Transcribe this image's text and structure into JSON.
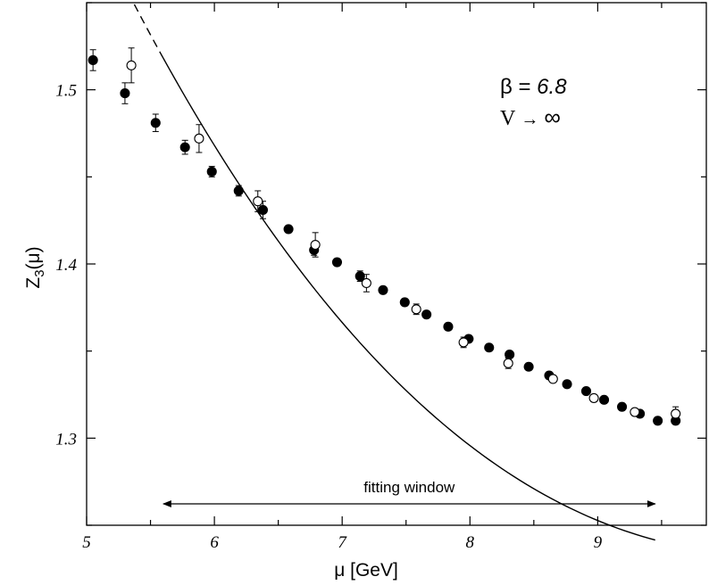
{
  "chart_data": {
    "type": "scatter",
    "xlabel": "μ [GeV]",
    "ylabel_main": "Z",
    "ylabel_sub": "3",
    "ylabel_tail": "(μ)",
    "xlim": [
      5.0,
      9.85
    ],
    "ylim": [
      1.25,
      1.55
    ],
    "x_ticks": [
      {
        "value": 5,
        "label": "5"
      },
      {
        "value": 6,
        "label": "6"
      },
      {
        "value": 7,
        "label": "7"
      },
      {
        "value": 8,
        "label": "8"
      },
      {
        "value": 9,
        "label": "9"
      }
    ],
    "y_ticks": [
      {
        "value": 1.3,
        "label": "1.3"
      },
      {
        "value": 1.4,
        "label": "1.4"
      },
      {
        "value": 1.5,
        "label": "1.5"
      }
    ],
    "x_minor_step": 0.5,
    "y_minor_step": 0.05,
    "annotation": {
      "beta_symbol": "β",
      "beta_eq": " = ",
      "beta_value": "6.8",
      "volume_symbol": "V",
      "arrow": "→",
      "infinity": "∞"
    },
    "fitting_window": {
      "label": "fitting window",
      "from": 5.6,
      "to": 9.45
    },
    "fit_curve": {
      "dashed_from": 5.0,
      "solid_from": 5.6,
      "to": 9.45,
      "coeffs": [
        2.91294,
        -0.383167,
        0.0270222,
        -0.000549398
      ]
    },
    "series": [
      {
        "marker": "filled",
        "points": [
          {
            "x": 5.05,
            "y": 1.517,
            "err": 0.006
          },
          {
            "x": 5.3,
            "y": 1.498,
            "err": 0.006
          },
          {
            "x": 5.54,
            "y": 1.481,
            "err": 0.005
          },
          {
            "x": 5.77,
            "y": 1.467,
            "err": 0.004
          },
          {
            "x": 5.98,
            "y": 1.453,
            "err": 0.003
          },
          {
            "x": 6.19,
            "y": 1.442,
            "err": 0.003
          },
          {
            "x": 6.38,
            "y": 1.431,
            "err": 0.005
          },
          {
            "x": 6.58,
            "y": 1.42,
            "err": 0.002
          },
          {
            "x": 6.78,
            "y": 1.408,
            "err": 0.003
          },
          {
            "x": 6.96,
            "y": 1.401,
            "err": 0.002
          },
          {
            "x": 7.14,
            "y": 1.393,
            "err": 0.003
          },
          {
            "x": 7.32,
            "y": 1.385,
            "err": 0.002
          },
          {
            "x": 7.49,
            "y": 1.378,
            "err": 0.002
          },
          {
            "x": 7.66,
            "y": 1.371,
            "err": 0.002
          },
          {
            "x": 7.83,
            "y": 1.364,
            "err": 0.002
          },
          {
            "x": 7.99,
            "y": 1.357,
            "err": 0.002
          },
          {
            "x": 8.15,
            "y": 1.352,
            "err": 0.002
          },
          {
            "x": 8.31,
            "y": 1.348,
            "err": 0.002
          },
          {
            "x": 8.46,
            "y": 1.341,
            "err": 0.002
          },
          {
            "x": 8.62,
            "y": 1.336,
            "err": 0.002
          },
          {
            "x": 8.76,
            "y": 1.331,
            "err": 0.002
          },
          {
            "x": 8.91,
            "y": 1.327,
            "err": 0.002
          },
          {
            "x": 9.05,
            "y": 1.322,
            "err": 0.002
          },
          {
            "x": 9.19,
            "y": 1.318,
            "err": 0.002
          },
          {
            "x": 9.33,
            "y": 1.314,
            "err": 0.002
          },
          {
            "x": 9.47,
            "y": 1.31,
            "err": 0.002
          },
          {
            "x": 9.61,
            "y": 1.31,
            "err": 0.002
          }
        ]
      },
      {
        "marker": "open",
        "points": [
          {
            "x": 5.35,
            "y": 1.514,
            "err": 0.01
          },
          {
            "x": 5.88,
            "y": 1.472,
            "err": 0.008
          },
          {
            "x": 6.34,
            "y": 1.436,
            "err": 0.006
          },
          {
            "x": 6.79,
            "y": 1.411,
            "err": 0.007
          },
          {
            "x": 7.19,
            "y": 1.389,
            "err": 0.005
          },
          {
            "x": 7.58,
            "y": 1.374,
            "err": 0.003
          },
          {
            "x": 7.95,
            "y": 1.355,
            "err": 0.003
          },
          {
            "x": 8.3,
            "y": 1.343,
            "err": 0.003
          },
          {
            "x": 8.65,
            "y": 1.334,
            "err": 0.002
          },
          {
            "x": 8.97,
            "y": 1.323,
            "err": 0.002
          },
          {
            "x": 9.29,
            "y": 1.315,
            "err": 0.002
          },
          {
            "x": 9.61,
            "y": 1.314,
            "err": 0.004
          }
        ]
      }
    ]
  }
}
